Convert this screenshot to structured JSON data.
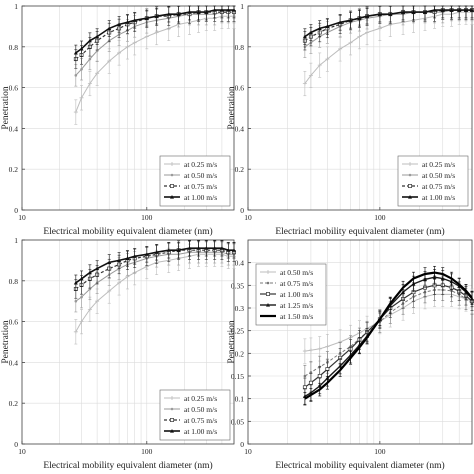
{
  "chart_data": [
    {
      "type": "line",
      "xlabel": "Electrical mobility equivalent diameter (nm)",
      "ylabel": "Penetration",
      "xscale": "log",
      "xlim": [
        10,
        500
      ],
      "ylim": [
        0,
        1
      ],
      "xticks": [
        "10",
        "100"
      ],
      "yticks": [
        "0",
        "0.2",
        "0.4",
        "0.6",
        "0.8",
        "1"
      ],
      "grid": true,
      "legend_position": "bottom-right",
      "x": [
        27,
        30,
        35,
        40,
        50,
        60,
        70,
        80,
        100,
        120,
        150,
        180,
        220,
        260,
        300,
        350,
        400,
        450,
        500
      ],
      "series": [
        {
          "name": "at 0.25 m/s",
          "color": "#bdbdbd",
          "marker": "plus",
          "width": 1,
          "values": [
            0.48,
            0.55,
            0.62,
            0.67,
            0.73,
            0.77,
            0.8,
            0.82,
            0.85,
            0.87,
            0.89,
            0.91,
            0.92,
            0.93,
            0.94,
            0.94,
            0.95,
            0.95,
            0.95
          ]
        },
        {
          "name": "at 0.50 m/s",
          "color": "#9a9a9a",
          "marker": "dot",
          "width": 1,
          "values": [
            0.66,
            0.69,
            0.74,
            0.78,
            0.83,
            0.86,
            0.88,
            0.9,
            0.92,
            0.93,
            0.94,
            0.95,
            0.96,
            0.96,
            0.96,
            0.96,
            0.97,
            0.97,
            0.97
          ]
        },
        {
          "name": "at 0.75 m/s",
          "color": "#333333",
          "marker": "square",
          "width": 1.2,
          "dash": "3,2",
          "values": [
            0.74,
            0.76,
            0.8,
            0.83,
            0.87,
            0.89,
            0.91,
            0.92,
            0.94,
            0.95,
            0.95,
            0.96,
            0.96,
            0.97,
            0.97,
            0.97,
            0.97,
            0.97,
            0.97
          ]
        },
        {
          "name": "at 1.00 m/s",
          "color": "#111111",
          "marker": "triangle",
          "width": 1.6,
          "values": [
            0.77,
            0.79,
            0.83,
            0.85,
            0.89,
            0.91,
            0.92,
            0.93,
            0.94,
            0.95,
            0.96,
            0.96,
            0.97,
            0.97,
            0.97,
            0.98,
            0.98,
            0.98,
            0.98
          ]
        }
      ]
    },
    {
      "type": "line",
      "xlabel": "Electriacl mobility equivalent diameter (nm)",
      "ylabel": "Penetration",
      "xscale": "log",
      "xlim": [
        10,
        500
      ],
      "ylim": [
        0,
        1
      ],
      "xticks": [
        "10",
        "100"
      ],
      "yticks": [
        "0",
        "0.2",
        "0.4",
        "0.6",
        "0.8",
        "1"
      ],
      "grid": true,
      "legend_position": "bottom-right",
      "x": [
        27,
        30,
        35,
        40,
        50,
        60,
        70,
        80,
        100,
        120,
        150,
        180,
        220,
        260,
        300,
        350,
        400,
        450,
        500
      ],
      "series": [
        {
          "name": "at 0.25 m/s",
          "color": "#bdbdbd",
          "marker": "plus",
          "width": 1,
          "values": [
            0.62,
            0.66,
            0.71,
            0.74,
            0.79,
            0.82,
            0.85,
            0.87,
            0.89,
            0.91,
            0.92,
            0.93,
            0.94,
            0.95,
            0.96,
            0.96,
            0.97,
            0.97,
            0.97
          ]
        },
        {
          "name": "at 0.50 m/s",
          "color": "#9a9a9a",
          "marker": "dot",
          "width": 1,
          "values": [
            0.8,
            0.82,
            0.85,
            0.87,
            0.9,
            0.92,
            0.93,
            0.94,
            0.95,
            0.96,
            0.96,
            0.97,
            0.97,
            0.97,
            0.97,
            0.98,
            0.98,
            0.98,
            0.98
          ]
        },
        {
          "name": "at 0.75 m/s",
          "color": "#333333",
          "marker": "square",
          "width": 1.2,
          "dash": "3,2",
          "values": [
            0.83,
            0.85,
            0.87,
            0.89,
            0.91,
            0.93,
            0.94,
            0.95,
            0.96,
            0.96,
            0.97,
            0.97,
            0.97,
            0.97,
            0.98,
            0.98,
            0.98,
            0.98,
            0.98
          ]
        },
        {
          "name": "at 1.00 m/s",
          "color": "#111111",
          "marker": "triangle",
          "width": 1.6,
          "values": [
            0.85,
            0.87,
            0.89,
            0.9,
            0.92,
            0.93,
            0.94,
            0.95,
            0.96,
            0.96,
            0.97,
            0.97,
            0.97,
            0.98,
            0.98,
            0.98,
            0.98,
            0.98,
            0.98
          ]
        }
      ]
    },
    {
      "type": "line",
      "xlabel": "Electrical mobility equivalent diameter (nm)",
      "ylabel": "Penetration",
      "xscale": "log",
      "xlim": [
        10,
        500
      ],
      "ylim": [
        0,
        1
      ],
      "xticks": [
        "10",
        "100"
      ],
      "yticks": [
        "0",
        "0.2",
        "0.4",
        "0.6",
        "0.8",
        "1"
      ],
      "grid": true,
      "legend_position": "bottom-right",
      "x": [
        27,
        30,
        35,
        40,
        50,
        60,
        70,
        80,
        100,
        120,
        150,
        180,
        220,
        260,
        300,
        350,
        400,
        450,
        500
      ],
      "series": [
        {
          "name": "at 0.25 m/s",
          "color": "#bdbdbd",
          "marker": "plus",
          "width": 1,
          "values": [
            0.55,
            0.6,
            0.66,
            0.7,
            0.75,
            0.79,
            0.82,
            0.84,
            0.87,
            0.89,
            0.9,
            0.91,
            0.92,
            0.93,
            0.93,
            0.93,
            0.93,
            0.92,
            0.92
          ]
        },
        {
          "name": "at 0.50 m/s",
          "color": "#9a9a9a",
          "marker": "dot",
          "width": 1,
          "values": [
            0.7,
            0.72,
            0.76,
            0.79,
            0.83,
            0.86,
            0.88,
            0.89,
            0.91,
            0.92,
            0.93,
            0.93,
            0.94,
            0.94,
            0.94,
            0.94,
            0.94,
            0.93,
            0.93
          ]
        },
        {
          "name": "at 0.75 m/s",
          "color": "#333333",
          "marker": "square",
          "width": 1.2,
          "dash": "3,2",
          "values": [
            0.76,
            0.78,
            0.81,
            0.83,
            0.86,
            0.88,
            0.9,
            0.91,
            0.92,
            0.93,
            0.94,
            0.95,
            0.95,
            0.95,
            0.95,
            0.95,
            0.95,
            0.94,
            0.94
          ]
        },
        {
          "name": "at 1.00 m/s",
          "color": "#111111",
          "marker": "triangle",
          "width": 1.6,
          "values": [
            0.79,
            0.81,
            0.84,
            0.86,
            0.89,
            0.9,
            0.91,
            0.92,
            0.93,
            0.94,
            0.95,
            0.95,
            0.96,
            0.96,
            0.96,
            0.96,
            0.96,
            0.95,
            0.95
          ]
        }
      ]
    },
    {
      "type": "line",
      "xlabel": "Electrical mobility equivalent diameter (nm)",
      "ylabel": "Penetration",
      "xscale": "log",
      "xlim": [
        10,
        500
      ],
      "ylim": [
        0,
        0.45
      ],
      "xticks": [
        "10",
        "100"
      ],
      "yticks": [
        "0",
        "0.05",
        "0.1",
        "0.15",
        "0.2",
        "0.25",
        "0.3",
        "0.35",
        "0.4"
      ],
      "grid": true,
      "legend_position": "top-left",
      "x": [
        27,
        30,
        35,
        40,
        50,
        60,
        70,
        80,
        100,
        120,
        150,
        180,
        220,
        260,
        300,
        350,
        400,
        450,
        500
      ],
      "series": [
        {
          "name": "at 0.50 m/s",
          "color": "#bdbdbd",
          "marker": "plus",
          "width": 1,
          "values": [
            0.205,
            0.207,
            0.21,
            0.215,
            0.225,
            0.235,
            0.245,
            0.255,
            0.27,
            0.285,
            0.3,
            0.315,
            0.325,
            0.33,
            0.33,
            0.33,
            0.325,
            0.32,
            0.315
          ]
        },
        {
          "name": "at 0.75 m/s",
          "color": "#777777",
          "marker": "dot",
          "width": 1,
          "dash": "3,2",
          "values": [
            0.15,
            0.158,
            0.17,
            0.18,
            0.2,
            0.215,
            0.232,
            0.247,
            0.27,
            0.29,
            0.31,
            0.325,
            0.335,
            0.34,
            0.34,
            0.338,
            0.33,
            0.32,
            0.31
          ]
        },
        {
          "name": "at 1.00 m/s",
          "color": "#333333",
          "marker": "square",
          "width": 1.2,
          "values": [
            0.125,
            0.135,
            0.15,
            0.165,
            0.19,
            0.21,
            0.23,
            0.247,
            0.275,
            0.3,
            0.32,
            0.335,
            0.345,
            0.35,
            0.35,
            0.345,
            0.337,
            0.327,
            0.315
          ]
        },
        {
          "name": "at 1.25 m/s",
          "color": "#1a1a1a",
          "marker": "triangle",
          "width": 1.4,
          "values": [
            0.105,
            0.113,
            0.128,
            0.145,
            0.172,
            0.196,
            0.218,
            0.238,
            0.275,
            0.305,
            0.335,
            0.353,
            0.363,
            0.368,
            0.365,
            0.358,
            0.348,
            0.335,
            0.32
          ]
        },
        {
          "name": "at 1.50 m/s",
          "color": "#000000",
          "marker": "none",
          "width": 2.2,
          "values": [
            0.1,
            0.108,
            0.12,
            0.135,
            0.163,
            0.19,
            0.213,
            0.235,
            0.275,
            0.31,
            0.345,
            0.365,
            0.375,
            0.378,
            0.375,
            0.365,
            0.352,
            0.338,
            0.322
          ]
        }
      ]
    }
  ]
}
